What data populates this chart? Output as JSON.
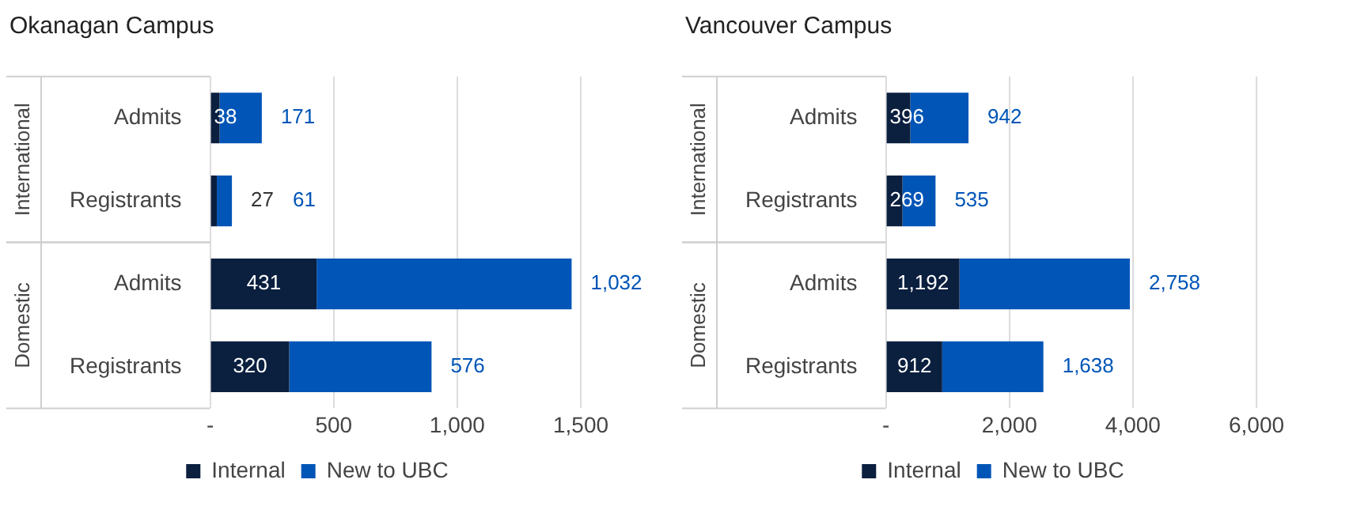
{
  "chart_data": [
    {
      "type": "bar",
      "title": "Okanagan Campus",
      "orientation": "horizontal",
      "stacked": true,
      "categories": [
        "Admits",
        "Registrants",
        "Admits",
        "Registrants"
      ],
      "series": [
        {
          "name": "Internal",
          "color": "#0b1f3f",
          "values": [
            38,
            27,
            431,
            320
          ],
          "value_labels": [
            "38",
            "27",
            "431",
            "320"
          ]
        },
        {
          "name": "New to UBC",
          "color": "#0055b7",
          "values": [
            171,
            61,
            1032,
            576
          ],
          "value_labels": [
            "171",
            "61",
            "1,032",
            "576"
          ]
        }
      ],
      "xlim": [
        0,
        1500
      ],
      "xticks": [
        {
          "value": 0,
          "label": "-"
        },
        500,
        {
          "value": 1000,
          "label": "1,000"
        },
        {
          "value": 1500,
          "label": "1,500"
        }
      ],
      "grid": "x",
      "legend": "bottom",
      "annotations": [
        "International",
        "Domestic"
      ]
    },
    {
      "type": "bar",
      "title": "Vancouver Campus",
      "orientation": "horizontal",
      "stacked": true,
      "categories": [
        "Admits",
        "Registrants",
        "Admits",
        "Registrants"
      ],
      "series": [
        {
          "name": "Internal",
          "color": "#0b1f3f",
          "values": [
            396,
            269,
            1192,
            912
          ],
          "value_labels": [
            "396",
            "269",
            "1,192",
            "912"
          ]
        },
        {
          "name": "New to UBC",
          "color": "#0055b7",
          "values": [
            942,
            535,
            2758,
            1638
          ],
          "value_labels": [
            "942",
            "535",
            "2,758",
            "1,638"
          ]
        }
      ],
      "xlim": [
        0,
        6000
      ],
      "xticks": [
        {
          "value": 0,
          "label": "-"
        },
        {
          "value": 2000,
          "label": "2,000"
        },
        {
          "value": 4000,
          "label": "4,000"
        },
        {
          "value": 6000,
          "label": "6,000"
        }
      ],
      "grid": "x",
      "legend": "bottom",
      "annotations": [
        "International",
        "Domestic"
      ]
    }
  ]
}
